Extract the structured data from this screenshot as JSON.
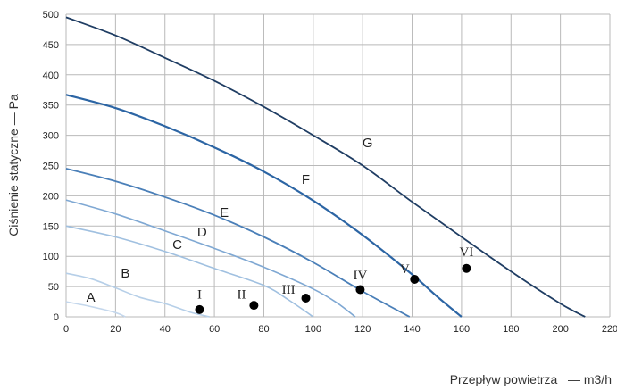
{
  "chart_data": {
    "type": "line",
    "xlabel": "Przepływ powietrza   — m3/h",
    "ylabel": "Ciśnienie statyczne   —   Pa",
    "xlim": [
      0,
      220
    ],
    "ylim": [
      0,
      500
    ],
    "xticks": [
      "0",
      "20",
      "40",
      "60",
      "80",
      "100",
      "120",
      "140",
      "160",
      "180",
      "200",
      "220"
    ],
    "yticks": [
      "0",
      "50",
      "100",
      "150",
      "200",
      "250",
      "300",
      "350",
      "400",
      "450",
      "500"
    ],
    "grid": true,
    "colors": {
      "A": "#c4d7ec",
      "B": "#b6cfe8",
      "C": "#a0c0e0",
      "D": "#7fa8d3",
      "E": "#4a7fb8",
      "F": "#2c65a4",
      "G": "#1f3d63",
      "points": "#000000"
    },
    "series": [
      {
        "name": "A",
        "points": [
          [
            0,
            25
          ],
          [
            10,
            17
          ],
          [
            20,
            7
          ],
          [
            24,
            0
          ]
        ],
        "label_at": [
          10,
          25
        ]
      },
      {
        "name": "B",
        "points": [
          [
            0,
            72
          ],
          [
            10,
            63
          ],
          [
            20,
            48
          ],
          [
            30,
            32
          ],
          [
            40,
            22
          ],
          [
            50,
            8
          ],
          [
            58,
            0
          ]
        ],
        "label_at": [
          24,
          65
        ]
      },
      {
        "name": "C",
        "points": [
          [
            0,
            150
          ],
          [
            20,
            132
          ],
          [
            40,
            108
          ],
          [
            60,
            80
          ],
          [
            80,
            52
          ],
          [
            90,
            28
          ],
          [
            100,
            0
          ]
        ],
        "label_at": [
          45,
          112
        ]
      },
      {
        "name": "D",
        "points": [
          [
            0,
            193
          ],
          [
            20,
            170
          ],
          [
            40,
            142
          ],
          [
            60,
            113
          ],
          [
            80,
            82
          ],
          [
            100,
            46
          ],
          [
            110,
            22
          ],
          [
            117,
            0
          ]
        ],
        "label_at": [
          55,
          133
        ]
      },
      {
        "name": "E",
        "points": [
          [
            0,
            245
          ],
          [
            20,
            224
          ],
          [
            40,
            198
          ],
          [
            60,
            168
          ],
          [
            80,
            132
          ],
          [
            100,
            90
          ],
          [
            120,
            42
          ],
          [
            139,
            0
          ]
        ],
        "label_at": [
          64,
          165
        ]
      },
      {
        "name": "F",
        "points": [
          [
            0,
            367
          ],
          [
            20,
            345
          ],
          [
            40,
            315
          ],
          [
            60,
            280
          ],
          [
            80,
            240
          ],
          [
            100,
            192
          ],
          [
            120,
            135
          ],
          [
            140,
            70
          ],
          [
            150,
            34
          ],
          [
            160,
            0
          ]
        ],
        "label_at": [
          97,
          220
        ]
      },
      {
        "name": "G",
        "points": [
          [
            0,
            495
          ],
          [
            20,
            465
          ],
          [
            40,
            428
          ],
          [
            60,
            390
          ],
          [
            80,
            347
          ],
          [
            100,
            300
          ],
          [
            120,
            250
          ],
          [
            140,
            190
          ],
          [
            160,
            132
          ],
          [
            180,
            75
          ],
          [
            200,
            22
          ],
          [
            210,
            0
          ]
        ],
        "label_at": [
          122,
          280
        ]
      }
    ],
    "markers": [
      {
        "label": "I",
        "x": 54,
        "y": 12,
        "label_at": [
          54,
          30
        ]
      },
      {
        "label": "II",
        "x": 76,
        "y": 19,
        "label_at": [
          71,
          30
        ]
      },
      {
        "label": "III",
        "x": 97,
        "y": 31,
        "label_at": [
          90,
          38
        ]
      },
      {
        "label": "IV",
        "x": 119,
        "y": 45,
        "label_at": [
          119,
          62
        ]
      },
      {
        "label": "V",
        "x": 141,
        "y": 62,
        "label_at": [
          137,
          72
        ]
      },
      {
        "label": "VI",
        "x": 162,
        "y": 80,
        "label_at": [
          162,
          100
        ]
      }
    ]
  }
}
